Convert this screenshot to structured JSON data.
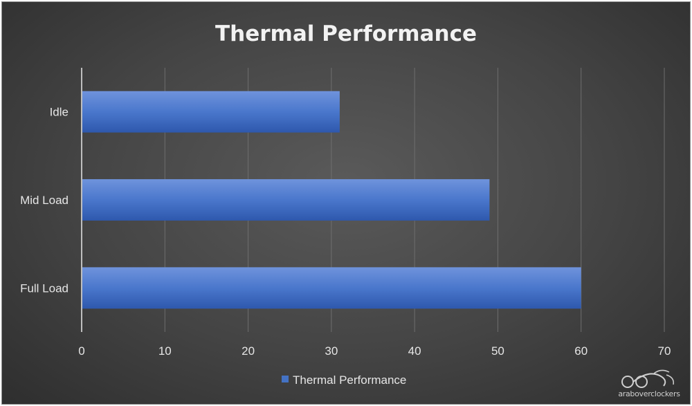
{
  "chart_data": {
    "type": "bar",
    "orientation": "horizontal",
    "title": "Thermal Performance",
    "categories": [
      "Idle",
      "Mid Load",
      "Full Load"
    ],
    "series": [
      {
        "name": "Thermal Performance",
        "values": [
          31,
          49,
          60
        ],
        "color": "#4472c4"
      }
    ],
    "xlim": [
      0,
      70
    ],
    "xticks": [
      "0",
      "10",
      "20",
      "30",
      "40",
      "50",
      "60",
      "70"
    ],
    "xlabel": "",
    "ylabel": "",
    "grid": true,
    "legend_position": "bottom"
  },
  "watermark": {
    "text": "araboverclockers"
  },
  "colors": {
    "background": "#444444",
    "bar": "#4472c4",
    "text": "#e6e6e6",
    "grid": "#6e6e6e"
  }
}
